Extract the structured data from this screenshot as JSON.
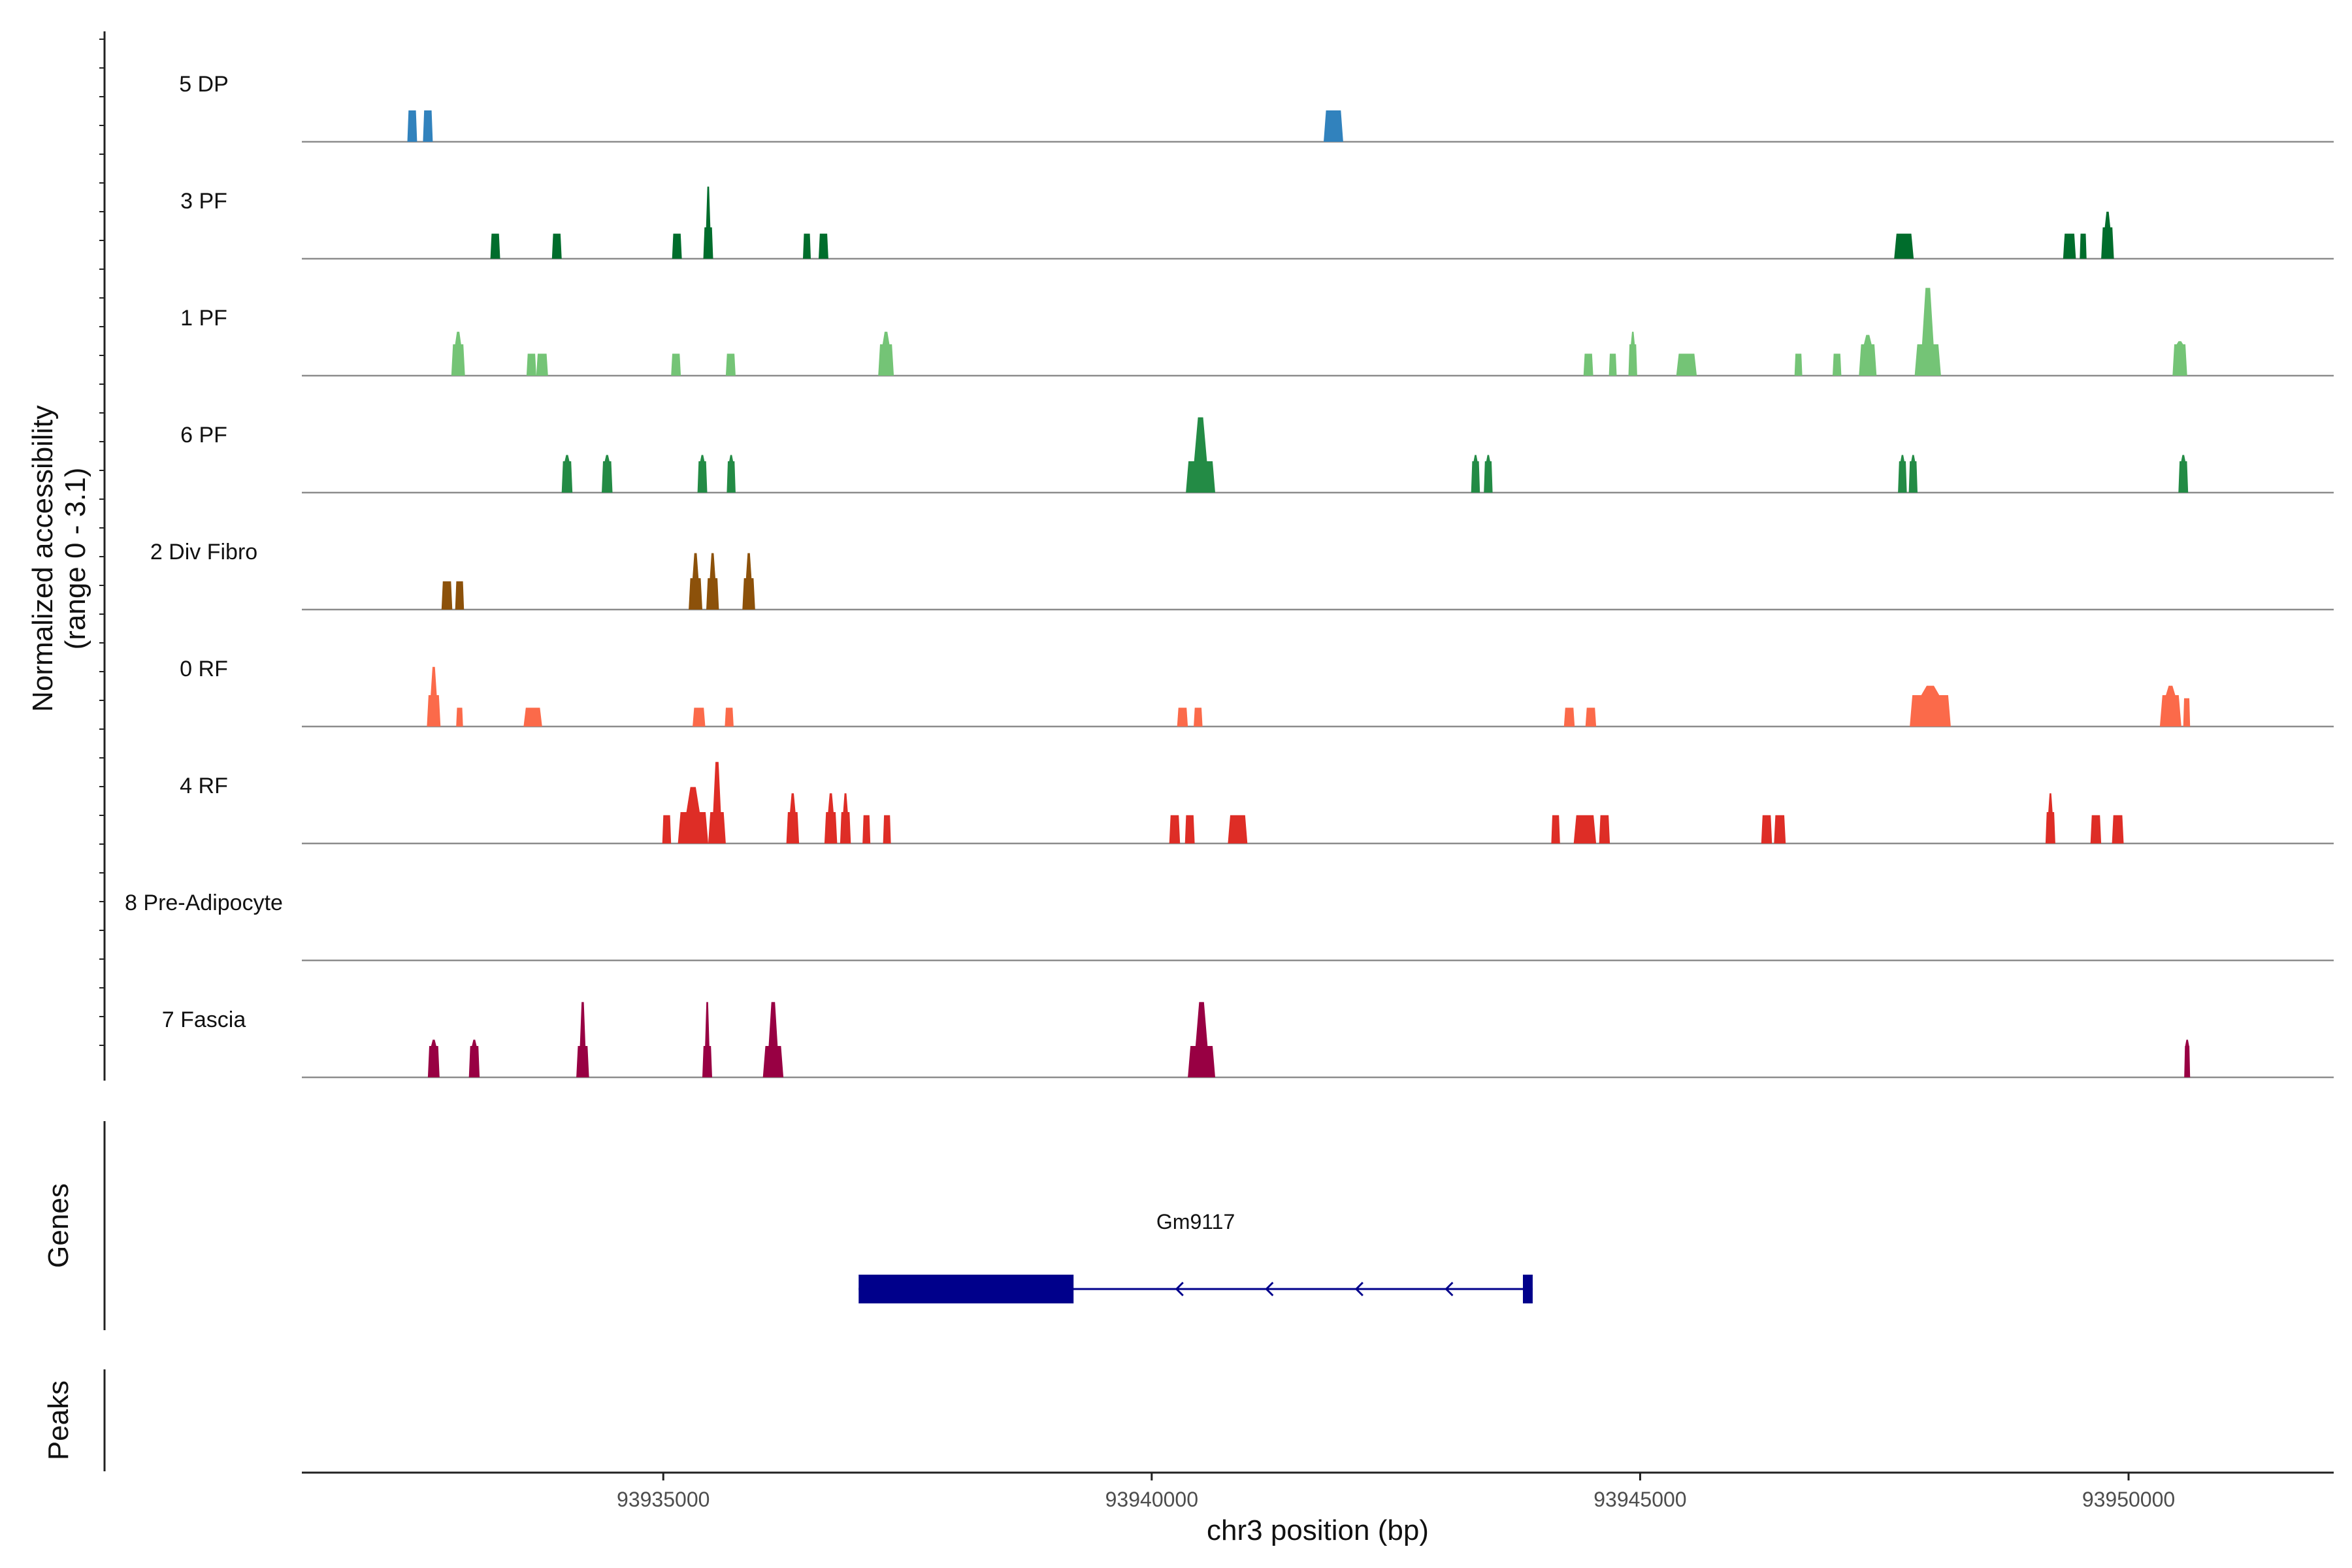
{
  "chart_data": {
    "type": "area",
    "title": "",
    "xlabel": "chr3 position (bp)",
    "ylabel": "Normalized accessibility\n(range 0 - 3.1)",
    "ylabel_lines": [
      "Normalized accessibility",
      "(range 0 - 3.1)"
    ],
    "xlim": [
      93931300,
      93952100
    ],
    "ylim": [
      0,
      3.1
    ],
    "xticks": [
      93935000,
      93940000,
      93945000,
      93950000
    ],
    "xtick_labels": [
      "93935000",
      "93940000",
      "93945000",
      "93950000"
    ],
    "series": [
      {
        "name": "5 DP",
        "color": "#3182bd",
        "peaks": [
          [
            93932380,
            93932480,
            1.0
          ],
          [
            93932540,
            93932640,
            1.0
          ],
          [
            93941760,
            93941960,
            1.0
          ]
        ]
      },
      {
        "name": "3 PF",
        "color": "#006d2c",
        "peaks": [
          [
            93933230,
            93933330,
            0.8
          ],
          [
            93933860,
            93933960,
            0.8
          ],
          [
            93935090,
            93935190,
            0.8
          ],
          [
            93935410,
            93935510,
            2.3
          ],
          [
            93936430,
            93936510,
            0.8
          ],
          [
            93936590,
            93936690,
            0.8
          ],
          [
            93947600,
            93947800,
            0.8
          ],
          [
            93949330,
            93949460,
            0.8
          ],
          [
            93949500,
            93949570,
            0.8
          ],
          [
            93949720,
            93949850,
            1.5
          ]
        ]
      },
      {
        "name": "1 PF",
        "color": "#74c476",
        "peaks": [
          [
            93932830,
            93932970,
            1.4
          ],
          [
            93933600,
            93933700,
            0.7
          ],
          [
            93933700,
            93933820,
            0.7
          ],
          [
            93935080,
            93935180,
            0.7
          ],
          [
            93935640,
            93935740,
            0.7
          ],
          [
            93937200,
            93937360,
            1.4
          ],
          [
            93944420,
            93944520,
            0.7
          ],
          [
            93944680,
            93944760,
            0.7
          ],
          [
            93944880,
            93944970,
            1.4
          ],
          [
            93945370,
            93945580,
            0.7
          ],
          [
            93946580,
            93946660,
            0.7
          ],
          [
            93946970,
            93947060,
            0.7
          ],
          [
            93947240,
            93947420,
            1.3
          ],
          [
            93947810,
            93948080,
            2.8
          ],
          [
            93950450,
            93950600,
            1.1
          ]
        ]
      },
      {
        "name": "6 PF",
        "color": "#238b45",
        "peaks": [
          [
            93933960,
            93934070,
            1.2
          ],
          [
            93934370,
            93934480,
            1.2
          ],
          [
            93935350,
            93935450,
            1.2
          ],
          [
            93935650,
            93935740,
            1.2
          ],
          [
            93940350,
            93940650,
            2.4
          ],
          [
            93943270,
            93943360,
            1.2
          ],
          [
            93943400,
            93943490,
            1.2
          ],
          [
            93947640,
            93947730,
            1.2
          ],
          [
            93947750,
            93947840,
            1.2
          ],
          [
            93950510,
            93950610,
            1.2
          ]
        ]
      },
      {
        "name": "2 Div Fibro",
        "color": "#8c510a",
        "peaks": [
          [
            93932730,
            93932840,
            0.9
          ],
          [
            93932870,
            93932960,
            0.9
          ],
          [
            93935260,
            93935400,
            1.8
          ],
          [
            93935440,
            93935570,
            1.8
          ],
          [
            93935810,
            93935940,
            1.8
          ]
        ]
      },
      {
        "name": "0 RF",
        "color": "#fb6a4a",
        "peaks": [
          [
            93932580,
            93932720,
            1.9
          ],
          [
            93932880,
            93932950,
            0.6
          ],
          [
            93933570,
            93933760,
            0.6
          ],
          [
            93935300,
            93935430,
            0.6
          ],
          [
            93935630,
            93935720,
            0.6
          ],
          [
            93940260,
            93940370,
            0.6
          ],
          [
            93940430,
            93940520,
            0.6
          ],
          [
            93944220,
            93944330,
            0.6
          ],
          [
            93944440,
            93944550,
            0.6
          ],
          [
            93947760,
            93948180,
            1.3
          ],
          [
            93950320,
            93950540,
            1.3
          ],
          [
            93950560,
            93950630,
            0.9
          ]
        ]
      },
      {
        "name": "4 RF",
        "color": "#de2d26",
        "peaks": [
          [
            93934990,
            93935080,
            0.9
          ],
          [
            93935150,
            93935460,
            1.8
          ],
          [
            93935460,
            93935640,
            2.6
          ],
          [
            93936260,
            93936390,
            1.6
          ],
          [
            93936650,
            93936780,
            1.6
          ],
          [
            93936810,
            93936920,
            1.6
          ],
          [
            93937040,
            93937120,
            0.9
          ],
          [
            93937250,
            93937330,
            0.9
          ],
          [
            93940180,
            93940290,
            0.9
          ],
          [
            93940340,
            93940440,
            0.9
          ],
          [
            93940780,
            93940980,
            0.9
          ],
          [
            93944090,
            93944180,
            0.9
          ],
          [
            93944320,
            93944550,
            0.9
          ],
          [
            93944580,
            93944690,
            0.9
          ],
          [
            93946240,
            93946350,
            0.9
          ],
          [
            93946370,
            93946490,
            0.9
          ],
          [
            93949150,
            93949250,
            1.6
          ],
          [
            93949610,
            93949720,
            0.9
          ],
          [
            93949830,
            93949950,
            0.9
          ]
        ]
      },
      {
        "name": "8 Pre-Adipocyte",
        "color": "#9e9ac8",
        "peaks": []
      },
      {
        "name": "7 Fascia",
        "color": "#980043",
        "peaks": [
          [
            93932590,
            93932710,
            1.2
          ],
          [
            93933010,
            93933120,
            1.2
          ],
          [
            93934110,
            93934240,
            2.4
          ],
          [
            93935400,
            93935500,
            2.4
          ],
          [
            93936020,
            93936230,
            2.4
          ],
          [
            93940370,
            93940650,
            2.4
          ],
          [
            93950570,
            93950630,
            1.2
          ]
        ]
      }
    ],
    "genes": [
      {
        "name": "Gm9117",
        "strand": "-",
        "start": 93937000,
        "end": 93943900,
        "exons": [
          [
            93937000,
            93939200
          ],
          [
            93943800,
            93943900
          ]
        ]
      }
    ],
    "panels": {
      "genes": "Genes",
      "peaks": "Peaks"
    }
  }
}
